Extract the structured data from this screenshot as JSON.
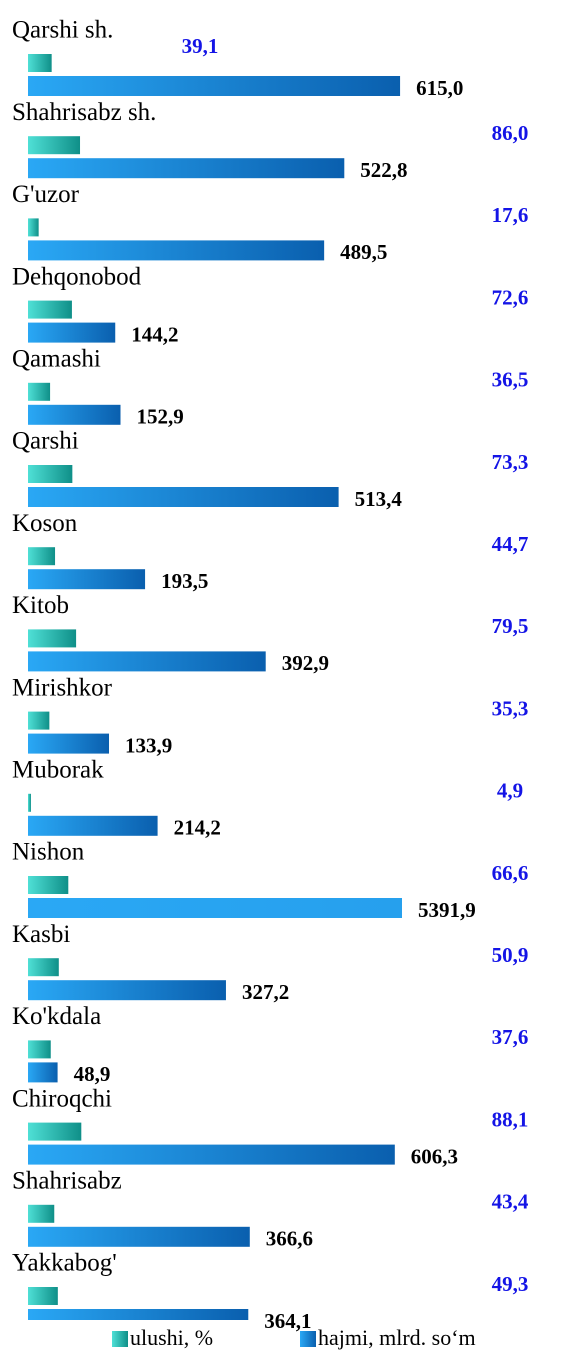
{
  "chart_data": {
    "type": "hbar",
    "categories": [
      "Qarshi sh.",
      "Shahrisabz sh.",
      "G'uzor",
      "Dehqonobod",
      "Qamashi",
      "Qarshi",
      "Koson",
      "Kitob",
      "Mirishkor",
      "Muborak",
      "Nishon",
      "Kasbi",
      "Ko'kdala",
      "Chiroqchi",
      "Shahrisabz",
      "Yakkabog'"
    ],
    "series": [
      {
        "name": "ulushi, %",
        "color": "#22c2b8",
        "values": [
          39.1,
          86.0,
          17.6,
          72.6,
          36.5,
          73.3,
          44.7,
          79.5,
          35.3,
          4.9,
          66.6,
          50.9,
          37.6,
          88.1,
          43.4,
          49.3
        ],
        "value_labels": [
          "39,1",
          "86,0",
          "17,6",
          "72,6",
          "36,5",
          "73,3",
          "44,7",
          "79,5",
          "35,3",
          "4,9",
          "66,6",
          "50,9",
          "37,6",
          "88,1",
          "43,4",
          "49,3"
        ]
      },
      {
        "name": "hajmi, mlrd. so‘m",
        "color": "#1a8fe0",
        "values": [
          615.0,
          522.8,
          489.5,
          144.2,
          152.9,
          513.4,
          193.5,
          392.9,
          133.9,
          214.2,
          5391.9,
          327.2,
          48.9,
          606.3,
          366.6,
          364.1
        ],
        "value_labels": [
          "615,0",
          "522,8",
          "489,5",
          "144,2",
          "152,9",
          "513,4",
          "193,5",
          "392,9",
          "133,9",
          "214,2",
          "5391,9",
          "327,2",
          "48,9",
          "606,3",
          "366,6",
          "364,1"
        ]
      }
    ]
  }
}
